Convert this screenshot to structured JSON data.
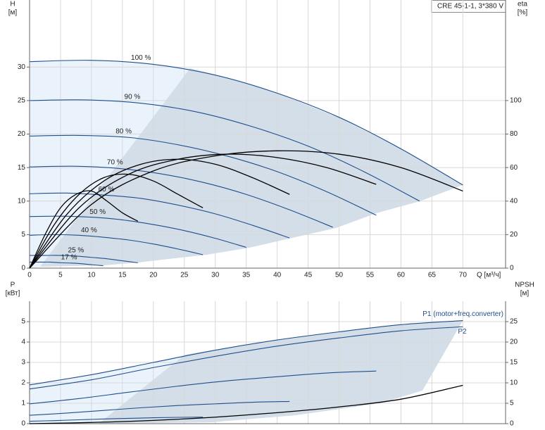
{
  "chart_data": [
    {
      "type": "line",
      "title": "CRE 45-1-1, 3*380 V",
      "ylabel": "H",
      "yunit": "[м]",
      "y2label": "eta",
      "y2unit": "[%]",
      "xlabel": "Q [м³/ч]",
      "xlim": [
        0,
        76.9
      ],
      "xticks": [
        0,
        5,
        10,
        15,
        20,
        25,
        30,
        35,
        40,
        45,
        50,
        55,
        60,
        65,
        70
      ],
      "ylim": [
        0,
        40
      ],
      "yticks": [
        0,
        5,
        10,
        15,
        20,
        25,
        30
      ],
      "y2lim": [
        0,
        160
      ],
      "y2ticks": [
        0,
        20,
        40,
        60,
        80,
        100
      ],
      "grid": true,
      "series": [
        {
          "name": "100 %",
          "color": "#1f4e8c",
          "x": [
            0,
            10,
            20,
            30,
            40,
            50,
            60,
            70
          ],
          "values": [
            30.8,
            31.0,
            30.4,
            28.8,
            26.1,
            22.5,
            17.8,
            12.4
          ]
        },
        {
          "name": "90 %",
          "color": "#1f4e8c",
          "x": [
            0,
            9,
            18,
            27,
            36,
            45,
            54,
            63
          ],
          "values": [
            25.0,
            25.1,
            24.6,
            23.3,
            21.1,
            18.2,
            14.4,
            10.0
          ]
        },
        {
          "name": "80 %",
          "color": "#1f4e8c",
          "x": [
            0,
            8,
            16,
            24,
            32,
            40,
            48,
            56
          ],
          "values": [
            19.7,
            19.8,
            19.5,
            18.4,
            16.7,
            14.4,
            11.4,
            7.9
          ]
        },
        {
          "name": "70 %",
          "color": "#1f4e8c",
          "x": [
            0,
            7,
            14,
            21,
            28,
            35,
            42,
            49
          ],
          "values": [
            15.1,
            15.2,
            14.9,
            14.1,
            12.8,
            11.0,
            8.7,
            6.1
          ]
        },
        {
          "name": "60 %",
          "color": "#1f4e8c",
          "x": [
            0,
            6,
            12,
            18,
            24,
            30,
            36,
            42
          ],
          "values": [
            11.1,
            11.2,
            10.9,
            10.4,
            9.4,
            8.1,
            6.4,
            4.5
          ]
        },
        {
          "name": "50 %",
          "color": "#1f4e8c",
          "x": [
            0,
            5,
            10,
            15,
            20,
            25,
            30,
            35
          ],
          "values": [
            7.7,
            7.75,
            7.6,
            7.2,
            6.5,
            5.6,
            4.45,
            3.1
          ]
        },
        {
          "name": "40 %",
          "color": "#1f4e8c",
          "x": [
            0,
            4,
            8,
            12,
            16,
            20,
            24,
            28
          ],
          "values": [
            4.9,
            5.0,
            4.9,
            4.6,
            4.2,
            3.6,
            2.85,
            2.0
          ]
        },
        {
          "name": "25 %",
          "color": "#1f4e8c",
          "x": [
            0,
            2.5,
            5,
            7.5,
            10,
            12.5,
            15,
            17.5
          ],
          "values": [
            1.9,
            1.9,
            1.9,
            1.8,
            1.6,
            1.4,
            1.1,
            0.8
          ]
        },
        {
          "name": "17 %",
          "color": "#1f4e8c",
          "x": [
            0,
            1.7,
            3.4,
            5.1,
            6.8,
            8.5,
            10.2,
            11.9
          ],
          "values": [
            0.9,
            0.9,
            0.9,
            0.8,
            0.75,
            0.65,
            0.5,
            0.36
          ]
        },
        {
          "color": "#000000",
          "axis": "y2",
          "x": [
            0,
            10,
            20,
            30,
            40,
            50,
            60,
            70
          ],
          "values": [
            0,
            38,
            58,
            67,
            70,
            68,
            60,
            46
          ]
        },
        {
          "color": "#000000",
          "axis": "y2",
          "x": [
            0,
            8,
            16,
            24,
            32,
            40,
            48,
            56
          ],
          "values": [
            0,
            36,
            56,
            65,
            68,
            66,
            60,
            50
          ]
        },
        {
          "color": "#000000",
          "axis": "y2",
          "x": [
            0,
            6,
            12,
            18,
            24,
            30,
            36,
            42
          ],
          "values": [
            0,
            32,
            52,
            62,
            65,
            62,
            54,
            44
          ]
        },
        {
          "color": "#000000",
          "axis": "y2",
          "x": [
            0,
            4,
            8,
            12,
            16,
            20,
            24,
            28
          ],
          "values": [
            0,
            26,
            44,
            54,
            56,
            52,
            44,
            36
          ]
        },
        {
          "color": "#000000",
          "axis": "y2",
          "x": [
            0,
            2.5,
            5,
            7.5,
            10,
            12.5,
            15,
            17.5
          ],
          "values": [
            0,
            20,
            36,
            44,
            46,
            40,
            33,
            28
          ]
        }
      ]
    },
    {
      "type": "line",
      "ylabel": "P",
      "yunit": "[кВт]",
      "y2label": "NPSH",
      "y2unit": "[м]",
      "xlim": [
        0,
        76.9
      ],
      "xticks": [
        0,
        5,
        10,
        15,
        20,
        25,
        30,
        35,
        40,
        45,
        50,
        55,
        60,
        65,
        70
      ],
      "ylim": [
        0,
        6
      ],
      "yticks": [
        0,
        1,
        2,
        3,
        4,
        5
      ],
      "y2lim": [
        0,
        30
      ],
      "y2ticks": [
        0,
        5,
        10,
        15,
        20,
        25
      ],
      "grid": true,
      "series": [
        {
          "name": "P1 (motor+freq.converter)",
          "color": "#1f4e8c",
          "x": [
            0,
            10,
            20,
            30,
            40,
            50,
            60,
            70
          ],
          "values": [
            1.9,
            2.4,
            3.0,
            3.6,
            4.1,
            4.5,
            4.85,
            5.05
          ]
        },
        {
          "name": "P2",
          "color": "#1f4e8c",
          "x": [
            0,
            10,
            20,
            30,
            40,
            50,
            60,
            70
          ],
          "values": [
            1.7,
            2.15,
            2.75,
            3.3,
            3.8,
            4.2,
            4.55,
            4.75
          ]
        },
        {
          "color": "#1f4e8c",
          "x": [
            0,
            8,
            16,
            24,
            32,
            40,
            48,
            56
          ],
          "values": [
            0.97,
            1.23,
            1.54,
            1.84,
            2.1,
            2.3,
            2.48,
            2.58
          ]
        },
        {
          "color": "#1f4e8c",
          "x": [
            0,
            6,
            12,
            18,
            24,
            30,
            36,
            42
          ],
          "values": [
            0.41,
            0.52,
            0.65,
            0.78,
            0.89,
            0.97,
            1.05,
            1.09
          ]
        },
        {
          "color": "#1f4e8c",
          "x": [
            0,
            4,
            8,
            12,
            16,
            20,
            24,
            28
          ],
          "values": [
            0.12,
            0.15,
            0.19,
            0.23,
            0.26,
            0.29,
            0.31,
            0.32
          ]
        },
        {
          "color": "#000000",
          "axis": "y2",
          "x": [
            0,
            10,
            20,
            30,
            40,
            50,
            60,
            70
          ],
          "values": [
            0,
            0.3,
            0.8,
            1.6,
            2.7,
            4.1,
            6.0,
            9.4
          ]
        }
      ]
    }
  ]
}
